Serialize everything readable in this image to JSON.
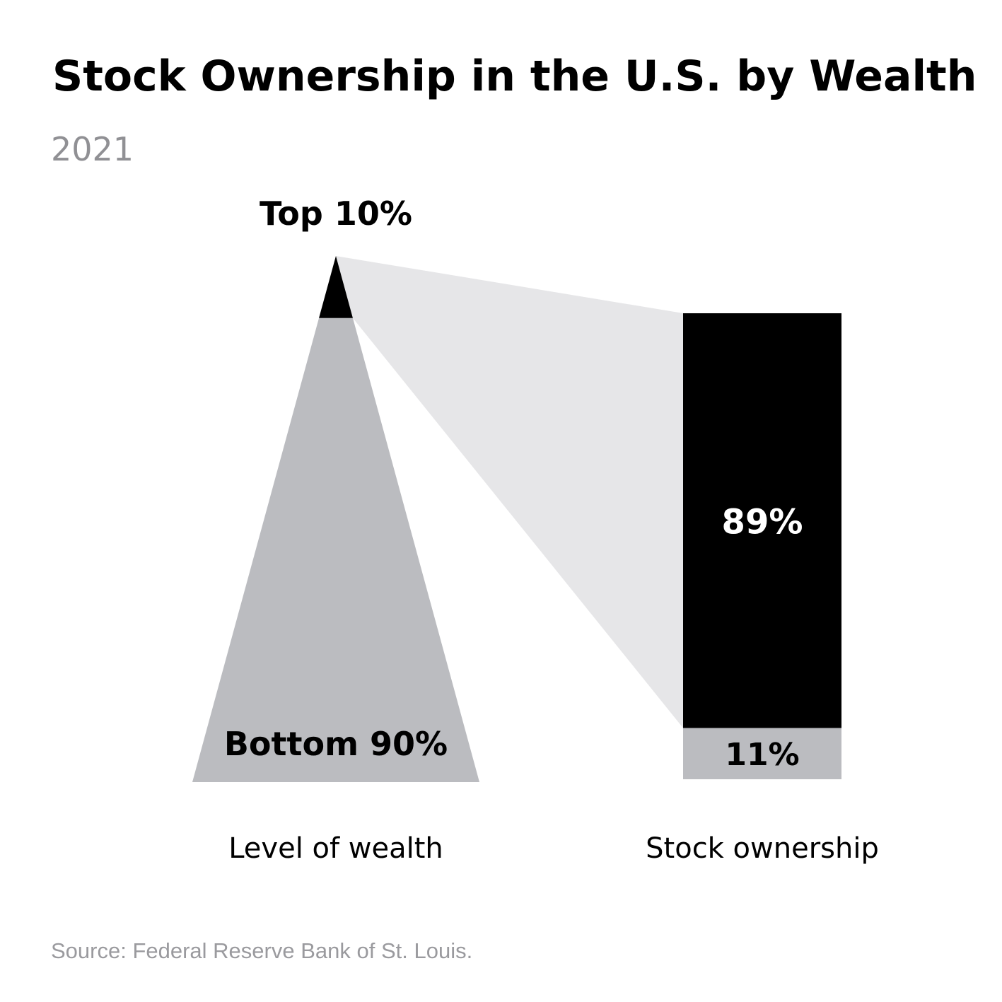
{
  "title": "Stock Ownership in the U.S. by Wealth",
  "subtitle": "2021",
  "source": "Source: Federal Reserve Bank of St. Louis.",
  "chart_data": {
    "type": "bar",
    "title": "Stock Ownership in the U.S. by Wealth",
    "subtitle": "2021",
    "categories": [
      "Top 10%",
      "Bottom 90%"
    ],
    "wealth": {
      "label": "Level of wealth",
      "groups": [
        {
          "name": "Top 10%",
          "share": 10
        },
        {
          "name": "Bottom 90%",
          "share": 90
        }
      ]
    },
    "stock_ownership": {
      "label": "Stock ownership",
      "segments": [
        {
          "group": "Top 10%",
          "value": 89,
          "label": "89%"
        },
        {
          "group": "Bottom 90%",
          "value": 11,
          "label": "11%"
        }
      ]
    },
    "colors": {
      "top": "#000000",
      "bottom": "#bbbcc0",
      "connector": "#e6e6e8",
      "label_on_dark": "#ffffff",
      "label_on_light": "#000000"
    }
  }
}
